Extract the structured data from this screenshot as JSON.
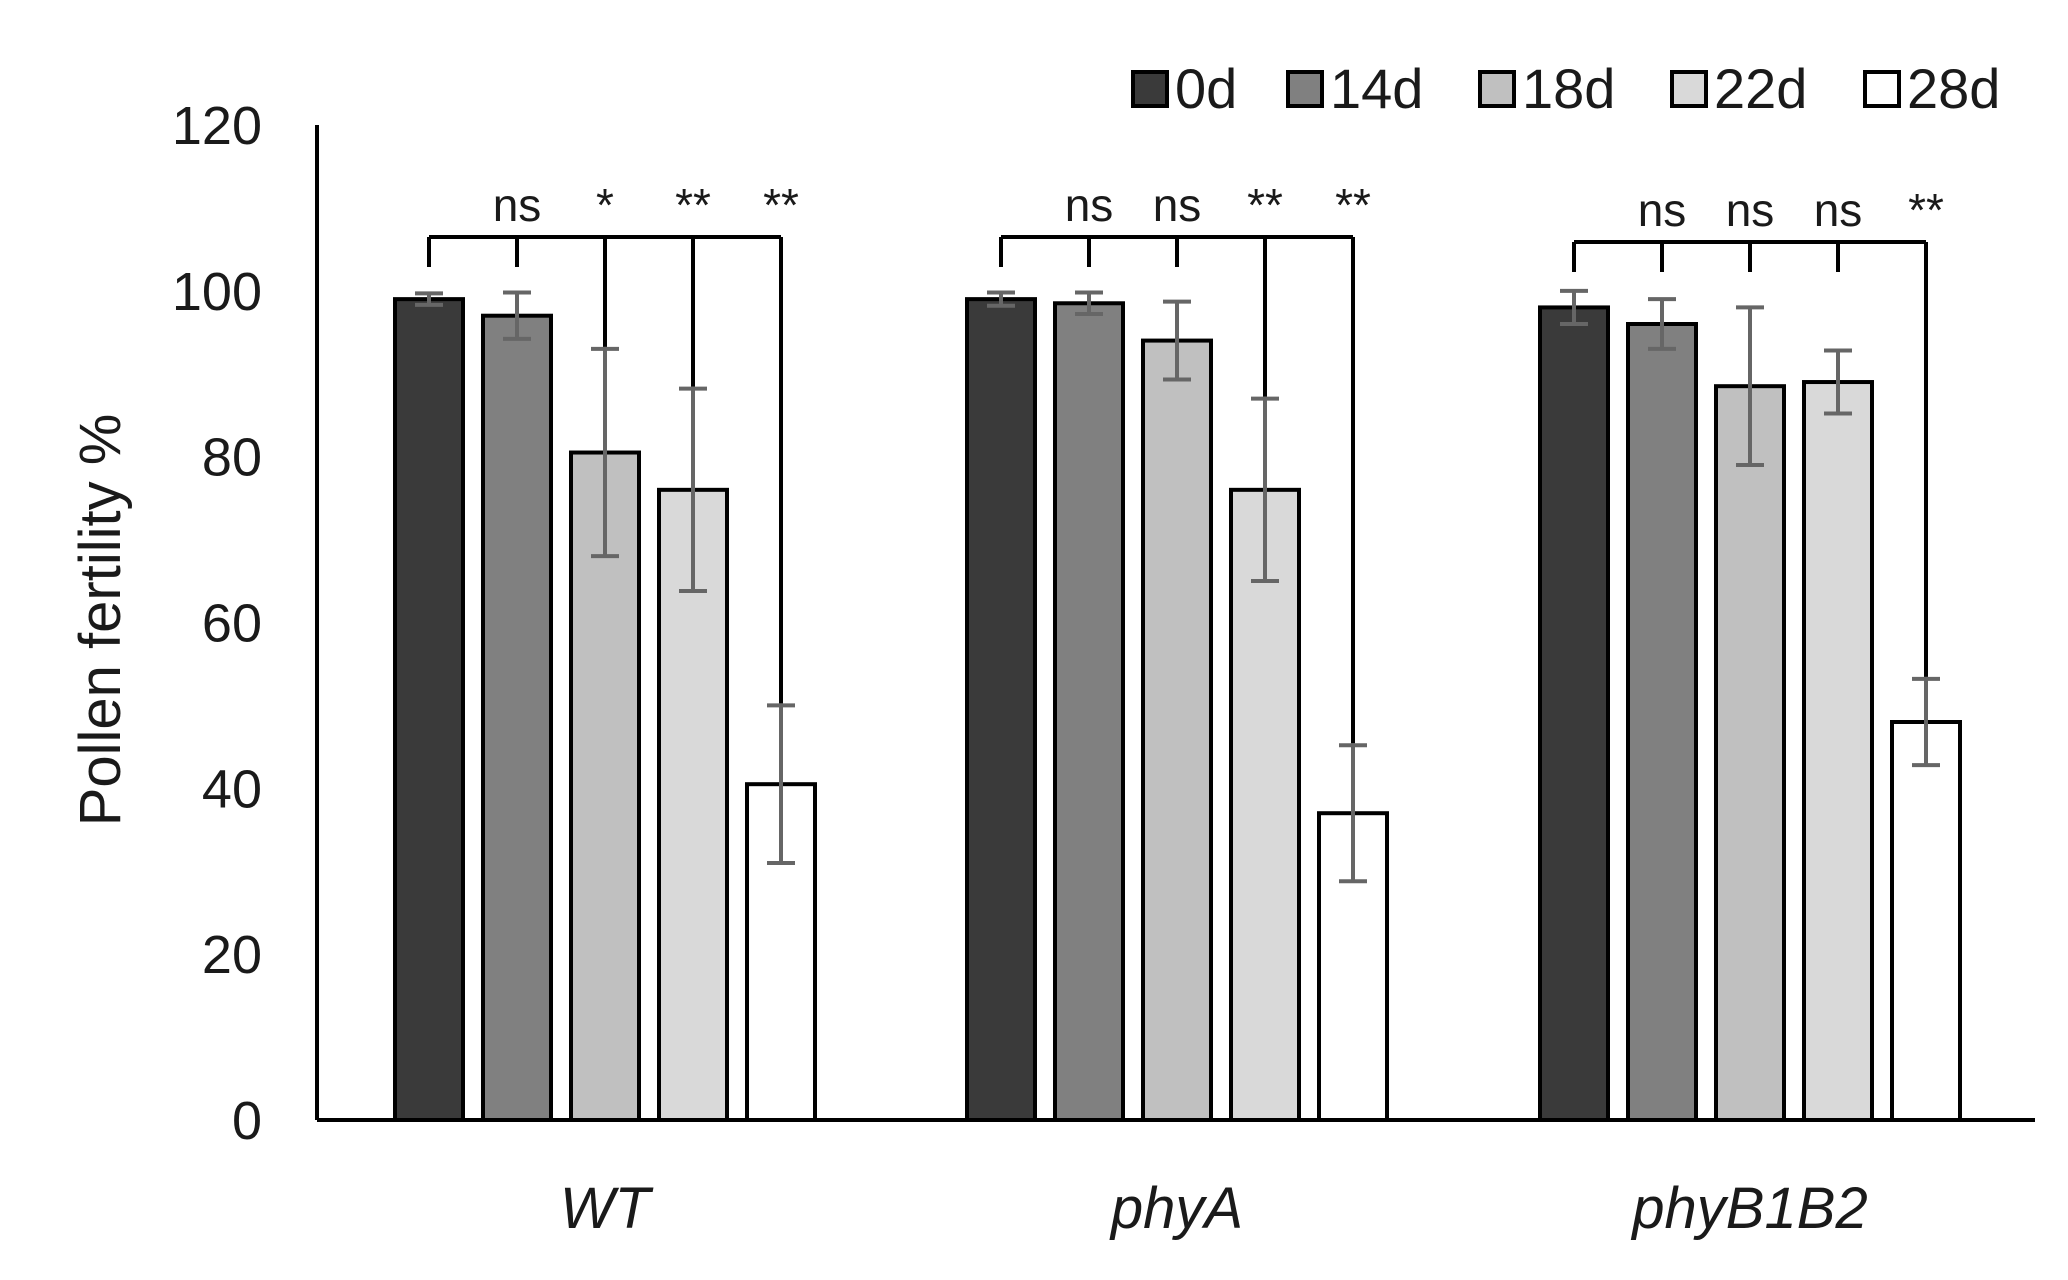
{
  "chart_data": {
    "type": "bar",
    "title": "",
    "xlabel": "",
    "ylabel": "Pollen fertility %",
    "ylim": [
      0,
      120
    ],
    "yticks": [
      "0",
      "20",
      "40",
      "60",
      "80",
      "100",
      "120"
    ],
    "categories": [
      "WT",
      "phyA",
      "phyB1B2"
    ],
    "legend_position": "top-right",
    "series": [
      {
        "name": "0d",
        "color": "#3a3a3a",
        "values": [
          99,
          99,
          98
        ],
        "errors": [
          0.7,
          0.8,
          2.0
        ]
      },
      {
        "name": "14d",
        "color": "#808080",
        "values": [
          97,
          98.5,
          96
        ],
        "errors": [
          2.8,
          1.3,
          3.0
        ]
      },
      {
        "name": "18d",
        "color": "#c0c0c0",
        "values": [
          80.5,
          94,
          88.5
        ],
        "errors": [
          12.5,
          4.7,
          9.5
        ]
      },
      {
        "name": "22d",
        "color": "#d9d9d9",
        "values": [
          76,
          76,
          89
        ],
        "errors": [
          12.2,
          11,
          3.8
        ]
      },
      {
        "name": "28d",
        "color": "#ffffff",
        "values": [
          40.5,
          37,
          48
        ],
        "errors": [
          9.5,
          8.2,
          5.2
        ]
      }
    ],
    "annotations": [
      {
        "category": "WT",
        "labels": [
          "ns",
          "*",
          "**",
          "**"
        ]
      },
      {
        "category": "phyA",
        "labels": [
          "ns",
          "ns",
          "**",
          "**"
        ]
      },
      {
        "category": "phyB1B2",
        "labels": [
          "ns",
          "ns",
          "ns",
          "**"
        ]
      }
    ]
  }
}
